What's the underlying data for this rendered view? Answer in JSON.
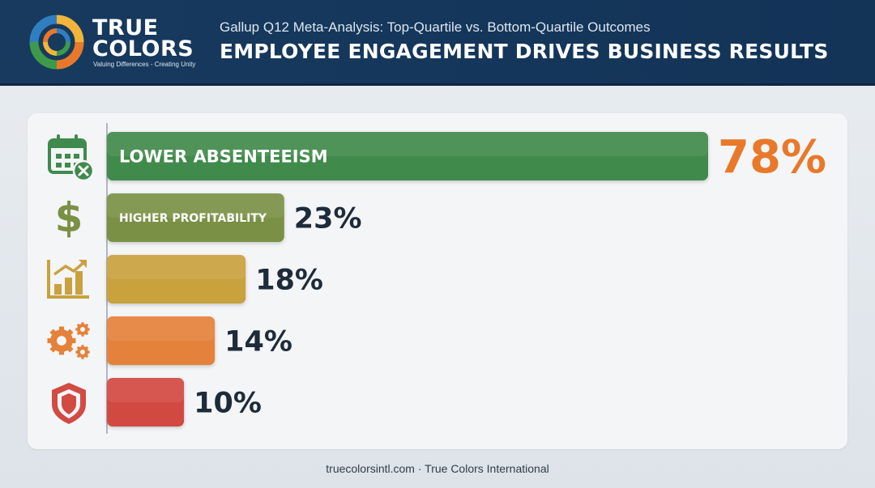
{
  "header": {
    "logo_line1": "TRUE",
    "logo_line2": "COLORS",
    "logo_tagline": "Valuing Differences - Creating Unity",
    "subtitle": "Gallup Q12 Meta-Analysis: Top-Quartile vs. Bottom-Quartile Outcomes",
    "title": "EMPLOYEE ENGAGEMENT DRIVES BUSINESS RESULTS"
  },
  "colors": {
    "header_bg": "#173a5e",
    "value_text": "#1d2b3a",
    "highlight_value": "#e8792a",
    "logo_ring": [
      "#e8792a",
      "#f2b53a",
      "#3c9a4a",
      "#2f7fc0"
    ]
  },
  "chart_data": {
    "type": "bar",
    "orientation": "horizontal",
    "xlim": [
      0,
      78
    ],
    "grid": false,
    "bars": [
      {
        "label": "LOWER ABSENTEEISM",
        "value": 78,
        "value_label": "78%",
        "color": "#3f8a4c",
        "icon": "calendar-x-icon",
        "highlight": true
      },
      {
        "label": "HIGHER PROFITABILITY",
        "value": 23,
        "value_label": "23%",
        "color": "#7a9145",
        "icon": "dollar-sign-icon",
        "highlight": false
      },
      {
        "label": "",
        "value": 18,
        "value_label": "18%",
        "color": "#c9a13e",
        "icon": "growth-chart-icon",
        "highlight": false
      },
      {
        "label": "",
        "value": 14,
        "value_label": "14%",
        "color": "#e4823a",
        "icon": "gears-icon",
        "highlight": false
      },
      {
        "label": "",
        "value": 10,
        "value_label": "10%",
        "color": "#d24a42",
        "icon": "shield-icon",
        "highlight": false
      }
    ]
  },
  "footer": {
    "text": "truecolorsintl.com · True Colors International"
  }
}
